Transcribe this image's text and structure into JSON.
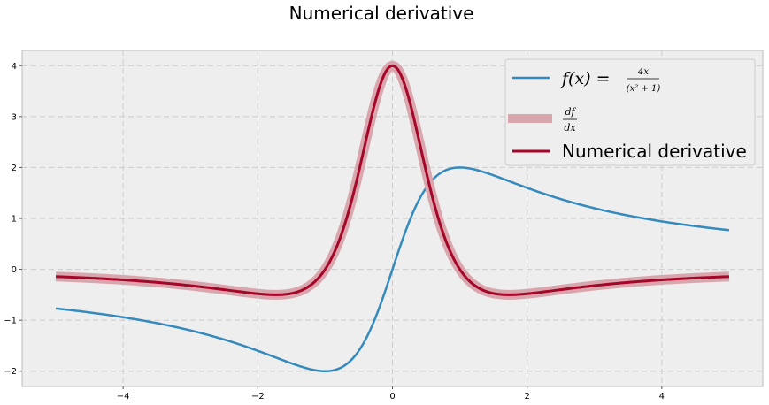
{
  "chart_data": {
    "type": "line",
    "title": "Numerical derivative",
    "xlabel": "",
    "ylabel": "",
    "xlim": [
      -5.5,
      5.5
    ],
    "ylim": [
      -2.3,
      4.3
    ],
    "grid": true,
    "xticks": [
      -4,
      -2,
      0,
      2,
      4
    ],
    "yticks": [
      -2,
      -1,
      0,
      1,
      2,
      3,
      4
    ],
    "xtick_labels": [
      "−4",
      "−2",
      "0",
      "2",
      "4"
    ],
    "ytick_labels": [
      "−2",
      "−1",
      "0",
      "1",
      "2",
      "3",
      "4"
    ],
    "x_range": [
      -5,
      5
    ],
    "legend_position": "top-right",
    "series": [
      {
        "name": "f(x) = 4x / (x² + 1)",
        "color": "#348abd",
        "x": [
          -5,
          -4,
          -3,
          -2,
          -1.5,
          -1,
          -0.5,
          0,
          0.5,
          1,
          1.5,
          2,
          3,
          4,
          5
        ],
        "y": [
          -0.769,
          -0.941,
          -1.2,
          -1.6,
          -1.846,
          -2.0,
          -1.6,
          0.0,
          1.6,
          2.0,
          1.846,
          1.6,
          1.2,
          0.941,
          0.769
        ]
      },
      {
        "name": "df/dx",
        "color": "#d9a6ae",
        "x": [
          -5,
          -4,
          -3,
          -2,
          -1.5,
          -1,
          -0.5,
          0,
          0.5,
          1,
          1.5,
          2,
          3,
          4,
          5
        ],
        "y": [
          -0.142,
          -0.208,
          -0.32,
          -0.48,
          -0.473,
          0.0,
          1.92,
          4.0,
          1.92,
          0.0,
          -0.473,
          -0.48,
          -0.32,
          -0.208,
          -0.142
        ]
      },
      {
        "name": "Numerical derivative",
        "color": "#a60628",
        "x": [
          -5,
          -4,
          -3,
          -2,
          -1.5,
          -1,
          -0.5,
          0,
          0.5,
          1,
          1.5,
          2,
          3,
          4,
          5
        ],
        "y": [
          -0.142,
          -0.208,
          -0.32,
          -0.48,
          -0.473,
          0.0,
          1.92,
          4.0,
          1.92,
          0.0,
          -0.473,
          -0.48,
          -0.32,
          -0.208,
          -0.142
        ]
      }
    ]
  },
  "legend": {
    "f_label": "f(x) =",
    "f_numerator": "4x",
    "f_denominator": "(x² + 1)",
    "d_numerator": "df",
    "d_denominator": "dx",
    "numerical_label": "Numerical derivative"
  }
}
